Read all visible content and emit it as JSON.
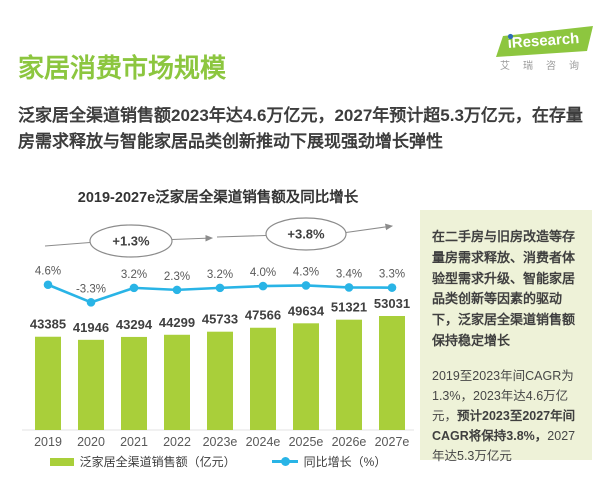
{
  "logo": {
    "brand": "iResearch",
    "subtext": "艾瑞咨询",
    "green": "#8dc63f",
    "blue": "#2e6db4"
  },
  "header": {
    "title": "家居消费市场规模",
    "subtitle": "泛家居全渠道销售额2023年达4.6万亿元，2027年预计超5.3万亿元，在存量房需求释放与智能家居品类创新推动下展现强劲增长弹性"
  },
  "chart_data": {
    "type": "bar",
    "subtype": "bar+line combo",
    "title": "2019-2027e泛家居全渠道销售额及同比增长",
    "categories": [
      "2019",
      "2020",
      "2021",
      "2022",
      "2023e",
      "2024e",
      "2025e",
      "2026e",
      "2027e"
    ],
    "series": [
      {
        "name": "泛家居全渠道销售额（亿元）",
        "type": "bar",
        "color": "#a9cf3a",
        "values": [
          43385,
          41946,
          43294,
          44299,
          45733,
          47566,
          49634,
          51321,
          53031
        ]
      },
      {
        "name": "同比增长（%）",
        "type": "line",
        "color": "#29b4e6",
        "values": [
          4.6,
          -3.3,
          3.2,
          2.3,
          3.2,
          4.0,
          4.3,
          3.4,
          3.3
        ]
      }
    ],
    "annotations": [
      {
        "label": "+1.3%"
      },
      {
        "label": "+3.8%"
      }
    ],
    "legend_position": "bottom",
    "grid": false
  },
  "sidebar": {
    "para1": "在二手房与旧房改造等存量房需求释放、消费者体验型需求升级、智能家居品类创新等因素的驱动下，泛家居全渠道销售额保持稳定增长",
    "para2_normal1": "2019至2023年间CAGR为1.3%，2023年达4.6万亿元，",
    "para2_bold": "预计2023至2027年间CAGR将保持3.8%，",
    "para2_normal2": "2027年达5.3万亿元"
  },
  "colors": {
    "title_green": "#8cc63f",
    "bar_green": "#a9cf3a",
    "line_cyan": "#29b4e6",
    "sidebar_bg": "#eef2d8",
    "dark_text": "#3d3d3d",
    "muted_text": "#595959",
    "annotation_stroke": "#8c8c8c"
  }
}
